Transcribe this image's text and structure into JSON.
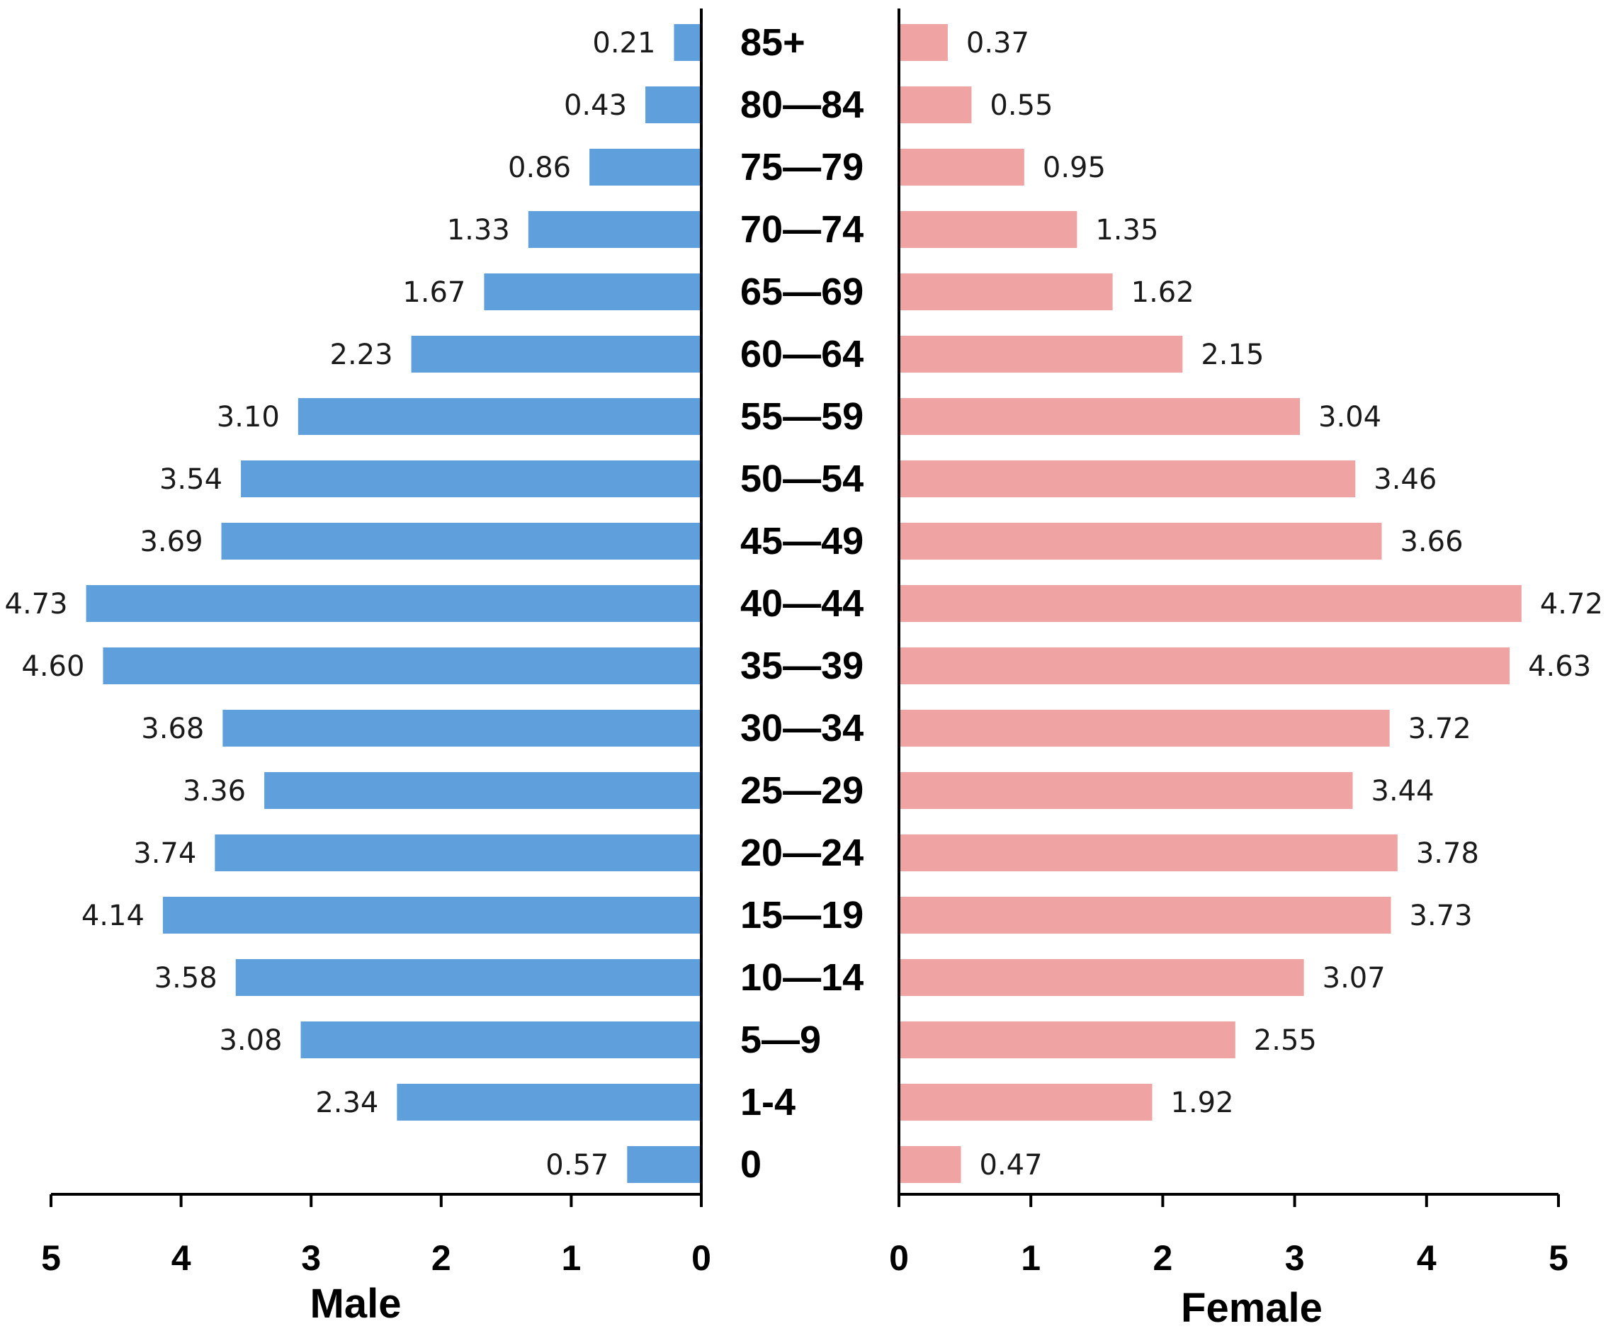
{
  "chart_data": {
    "type": "bar",
    "subtype": "population-pyramid",
    "categories": [
      "85+",
      "80—84",
      "75—79",
      "70—74",
      "65—69",
      "60—64",
      "55—59",
      "50—54",
      "45—49",
      "40—44",
      "35—39",
      "30—34",
      "25—29",
      "20—24",
      "15—19",
      "10—14",
      "5—9",
      "1-4",
      "0"
    ],
    "series": [
      {
        "name": "Male",
        "color": "#5f9fdc",
        "values": [
          0.21,
          0.43,
          0.86,
          1.33,
          1.67,
          2.23,
          3.1,
          3.54,
          3.69,
          4.73,
          4.6,
          3.68,
          3.36,
          3.74,
          4.14,
          3.58,
          3.08,
          2.34,
          0.57
        ],
        "labels": [
          "0.21",
          "0.43",
          "0.86",
          "1.33",
          "1.67",
          "2.23",
          "3.10",
          "3.54",
          "3.69",
          "4.73",
          "4.60",
          "3.68",
          "3.36",
          "3.74",
          "4.14",
          "3.58",
          "3.08",
          "2.34",
          "0.57"
        ]
      },
      {
        "name": "Female",
        "color": "#f0a3a3",
        "values": [
          0.37,
          0.55,
          0.95,
          1.35,
          1.62,
          2.15,
          3.04,
          3.46,
          3.66,
          4.72,
          4.63,
          3.72,
          3.44,
          3.78,
          3.73,
          3.07,
          2.55,
          1.92,
          0.47
        ],
        "labels": [
          "0.37",
          "0.55",
          "0.95",
          "1.35",
          "1.62",
          "2.15",
          "3.04",
          "3.46",
          "3.66",
          "4.72",
          "4.63",
          "3.72",
          "3.44",
          "3.78",
          "3.73",
          "3.07",
          "2.55",
          "1.92",
          "0.47"
        ]
      }
    ],
    "xlim": [
      0,
      5
    ],
    "xticks": [
      "0",
      "1",
      "2",
      "3",
      "4",
      "5"
    ],
    "xlabel_left": "Male",
    "xlabel_right": "Female",
    "title": ""
  }
}
